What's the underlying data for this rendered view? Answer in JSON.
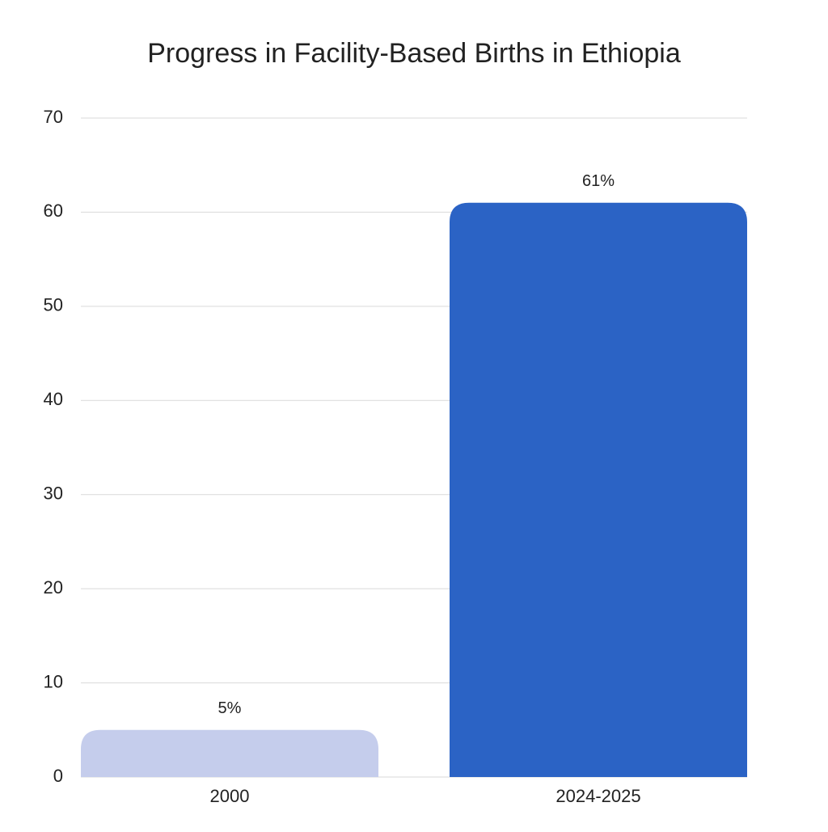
{
  "chart_data": {
    "type": "bar",
    "title": "Progress in Facility-Based Births in Ethiopia",
    "categories": [
      "2000",
      "2024-2025"
    ],
    "values": [
      5,
      61
    ],
    "value_labels": [
      "5%",
      "61%"
    ],
    "colors": [
      "#c5cdec",
      "#2b63c5"
    ],
    "ylim": [
      0,
      70
    ],
    "yticks": [
      0,
      10,
      20,
      30,
      40,
      50,
      60,
      70
    ],
    "grid": true
  }
}
